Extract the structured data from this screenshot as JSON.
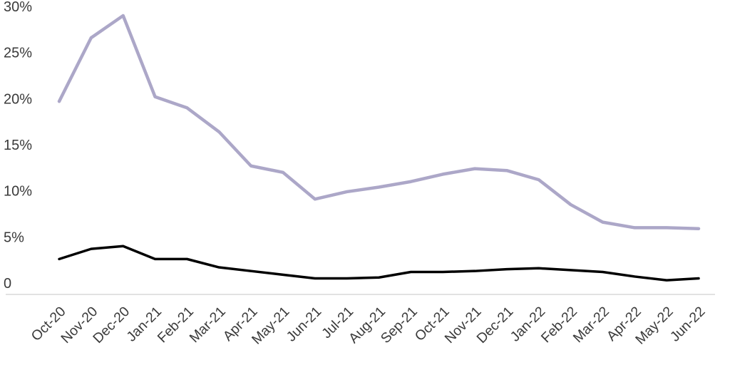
{
  "chart_data": {
    "type": "line",
    "title": "",
    "xlabel": "",
    "ylabel": "",
    "categories": [
      "Oct-20",
      "Nov-20",
      "Dec-20",
      "Jan-21",
      "Feb-21",
      "Mar-21",
      "Apr-21",
      "May-21",
      "Jun-21",
      "Jul-21",
      "Aug-21",
      "Sep-21",
      "Oct-21",
      "Nov-21",
      "Dec-21",
      "Jan-22",
      "Feb-22",
      "Mar-22",
      "Apr-22",
      "May-22",
      "Jun-22"
    ],
    "series": [
      {
        "name": "upper-line",
        "color": "#ACA7C8",
        "stroke_width": 4.5,
        "values": [
          19.7,
          26.6,
          29.0,
          20.2,
          19.0,
          16.4,
          12.7,
          12.0,
          9.1,
          9.9,
          10.4,
          11.0,
          11.8,
          12.4,
          12.2,
          11.2,
          8.5,
          6.6,
          6.0,
          6.0,
          5.9
        ]
      },
      {
        "name": "lower-line",
        "color": "#000000",
        "stroke_width": 3.5,
        "values": [
          2.6,
          3.7,
          4.0,
          2.6,
          2.6,
          1.7,
          1.3,
          0.9,
          0.5,
          0.5,
          0.6,
          1.2,
          1.2,
          1.3,
          1.5,
          1.6,
          1.4,
          1.2,
          0.7,
          0.3,
          0.5
        ]
      }
    ],
    "ylim": [
      0,
      30
    ],
    "y_ticks": [
      0,
      5,
      10,
      15,
      20,
      25,
      30
    ],
    "y_tick_labels": [
      "0",
      "5%",
      "10%",
      "15%",
      "20%",
      "25%",
      "30%"
    ],
    "grid": false,
    "legend_position": "none",
    "x_label_rotation_deg": 45,
    "colors": {
      "axis_line": "#D9D9D9",
      "tick_label": "#3A3A3A",
      "background": "#FFFFFF"
    }
  }
}
